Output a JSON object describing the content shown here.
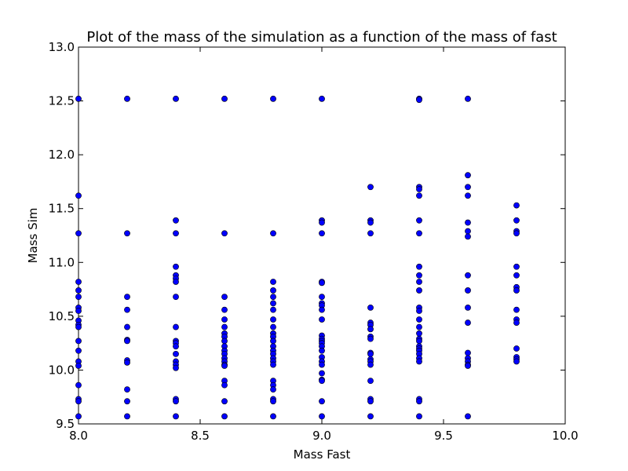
{
  "chart_data": {
    "type": "scatter",
    "title": "Plot of the mass of the simulation as a function of the mass of fast",
    "xlabel": "Mass Fast",
    "ylabel": "Mass Sim",
    "xlim": [
      8.0,
      10.0
    ],
    "ylim": [
      9.5,
      13.0
    ],
    "xticks": [
      8.0,
      8.5,
      9.0,
      9.5,
      10.0
    ],
    "xtick_labels": [
      "8.0",
      "8.5",
      "9.0",
      "9.5",
      "10.0"
    ],
    "yticks": [
      9.5,
      10.0,
      10.5,
      11.0,
      11.5,
      12.0,
      12.5,
      13.0
    ],
    "ytick_labels": [
      "9.5",
      "10.0",
      "10.5",
      "11.0",
      "11.5",
      "12.0",
      "12.5",
      "13.0"
    ],
    "grid": false,
    "marker_color": "#0000ff",
    "points_by_x": [
      {
        "x": 8.0,
        "y": [
          12.52,
          11.62,
          11.27,
          10.82,
          10.74,
          10.68,
          10.58,
          10.55,
          10.46,
          10.42,
          10.4,
          10.27,
          10.18,
          10.08,
          10.04,
          9.86,
          9.73,
          9.71,
          9.57
        ]
      },
      {
        "x": 8.2,
        "y": [
          12.52,
          11.27,
          10.68,
          10.56,
          10.4,
          10.28,
          10.27,
          10.09,
          10.07,
          9.82,
          9.71,
          9.57
        ]
      },
      {
        "x": 8.4,
        "y": [
          12.52,
          11.39,
          11.27,
          10.96,
          10.88,
          10.85,
          10.82,
          10.68,
          10.4,
          10.27,
          10.25,
          10.22,
          10.15,
          10.08,
          10.05,
          10.02,
          9.73,
          9.71,
          9.57
        ]
      },
      {
        "x": 8.6,
        "y": [
          12.52,
          11.27,
          10.68,
          10.56,
          10.47,
          10.4,
          10.34,
          10.31,
          10.27,
          10.22,
          10.18,
          10.15,
          10.11,
          10.08,
          10.05,
          10.04,
          9.9,
          9.86,
          9.71,
          9.57
        ]
      },
      {
        "x": 8.8,
        "y": [
          12.52,
          11.27,
          10.82,
          10.74,
          10.68,
          10.62,
          10.56,
          10.47,
          10.4,
          10.34,
          10.31,
          10.27,
          10.22,
          10.18,
          10.15,
          10.11,
          10.08,
          10.05,
          9.9,
          9.86,
          9.82,
          9.73,
          9.71,
          9.57
        ]
      },
      {
        "x": 9.0,
        "y": [
          12.52,
          11.39,
          11.37,
          11.27,
          10.82,
          10.81,
          10.68,
          10.62,
          10.6,
          10.56,
          10.47,
          10.32,
          10.29,
          10.27,
          10.25,
          10.22,
          10.18,
          10.12,
          10.08,
          10.05,
          9.97,
          9.91,
          9.9,
          9.71,
          9.57
        ]
      },
      {
        "x": 9.2,
        "y": [
          11.7,
          11.39,
          11.37,
          11.27,
          10.58,
          10.44,
          10.42,
          10.38,
          10.31,
          10.29,
          10.16,
          10.15,
          10.1,
          10.08,
          10.05,
          9.9,
          9.73,
          9.71,
          9.57
        ]
      },
      {
        "x": 9.4,
        "y": [
          12.52,
          12.51,
          11.7,
          11.68,
          11.62,
          11.39,
          11.27,
          10.96,
          10.88,
          10.82,
          10.74,
          10.58,
          10.55,
          10.47,
          10.4,
          10.34,
          10.29,
          10.27,
          10.22,
          10.2,
          10.18,
          10.15,
          10.11,
          10.08,
          9.73,
          9.71,
          9.57
        ]
      },
      {
        "x": 9.6,
        "y": [
          12.52,
          11.81,
          11.7,
          11.62,
          11.37,
          11.29,
          11.24,
          10.88,
          10.74,
          10.58,
          10.44,
          10.16,
          10.11,
          10.08,
          10.05,
          10.04,
          9.57
        ]
      },
      {
        "x": 9.8,
        "y": [
          11.53,
          11.39,
          11.29,
          11.27,
          10.96,
          10.88,
          10.77,
          10.74,
          10.56,
          10.47,
          10.44,
          10.2,
          10.12,
          10.1,
          10.08
        ]
      }
    ]
  }
}
